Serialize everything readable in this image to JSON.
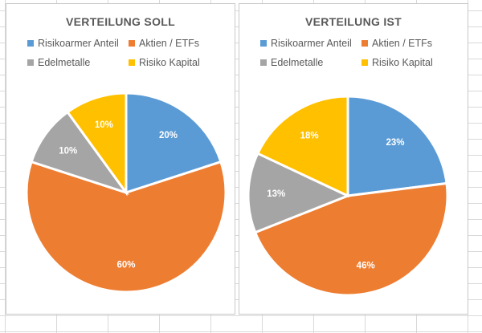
{
  "chart_data": [
    {
      "type": "pie",
      "title": "VERTEILUNG SOLL",
      "categories": [
        "Risikoarmer Anteil",
        "Aktien / ETFs",
        "Edelmetalle",
        "Risiko Kapital"
      ],
      "values": [
        20,
        60,
        10,
        10
      ],
      "labels": [
        "20%",
        "60%",
        "10%",
        "10%"
      ],
      "colors": [
        "#5b9bd5",
        "#ed7d31",
        "#a5a5a5",
        "#ffc000"
      ],
      "legend": "top"
    },
    {
      "type": "pie",
      "title": "VERTEILUNG IST",
      "categories": [
        "Risikoarmer Anteil",
        "Aktien / ETFs",
        "Edelmetalle",
        "Risiko Kapital"
      ],
      "values": [
        23,
        46,
        13,
        18
      ],
      "labels": [
        "23%",
        "46%",
        "13%",
        "18%"
      ],
      "colors": [
        "#5b9bd5",
        "#ed7d31",
        "#a5a5a5",
        "#ffc000"
      ],
      "legend": "top"
    }
  ]
}
